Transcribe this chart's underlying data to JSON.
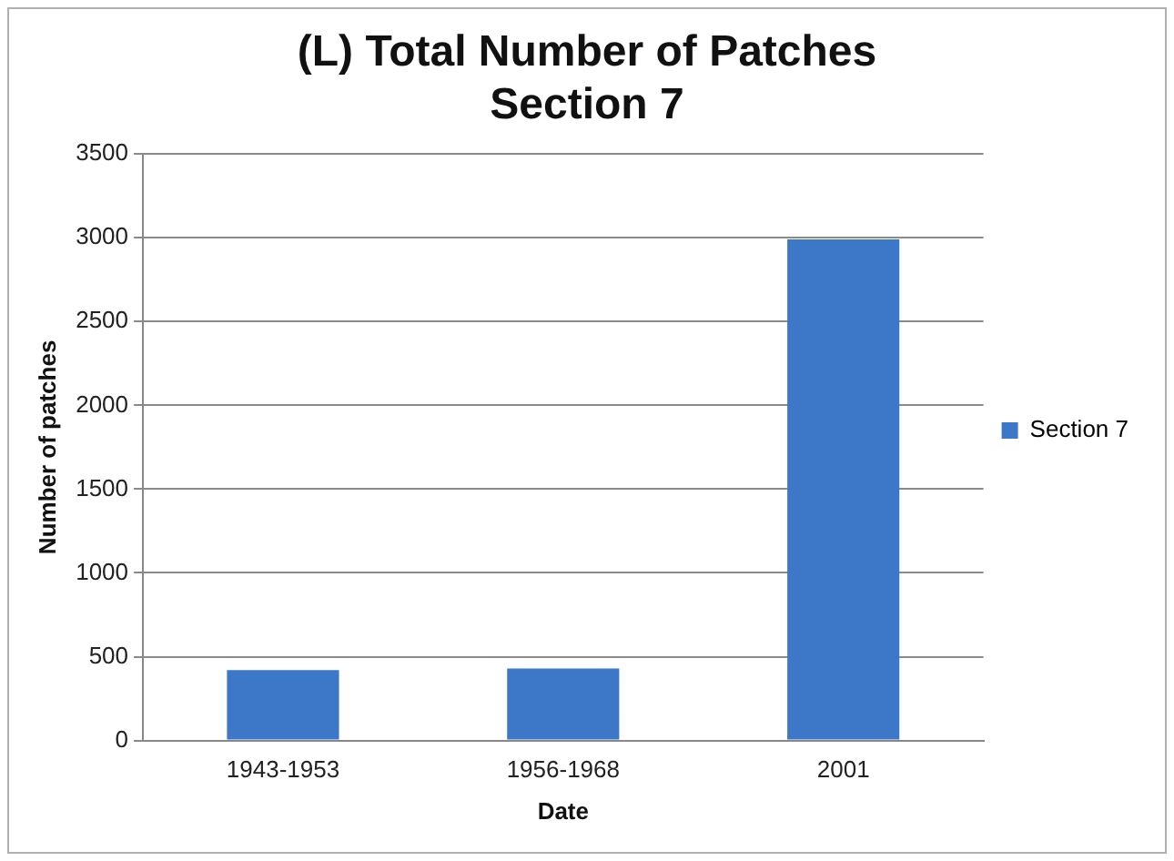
{
  "chart_data": {
    "type": "bar",
    "title": "(L) Total Number of Patches\nSection 7",
    "xlabel": "Date",
    "ylabel": "Number of patches",
    "categories": [
      "1943-1953",
      "1956-1968",
      "2001"
    ],
    "series": [
      {
        "name": "Section 7",
        "color": "#3d78c8",
        "values": [
          420,
          430,
          2990
        ]
      }
    ],
    "ylim": [
      0,
      3500
    ],
    "yticks": [
      0,
      500,
      1000,
      1500,
      2000,
      2500,
      3000,
      3500
    ],
    "grid": "y",
    "legend": "right"
  }
}
